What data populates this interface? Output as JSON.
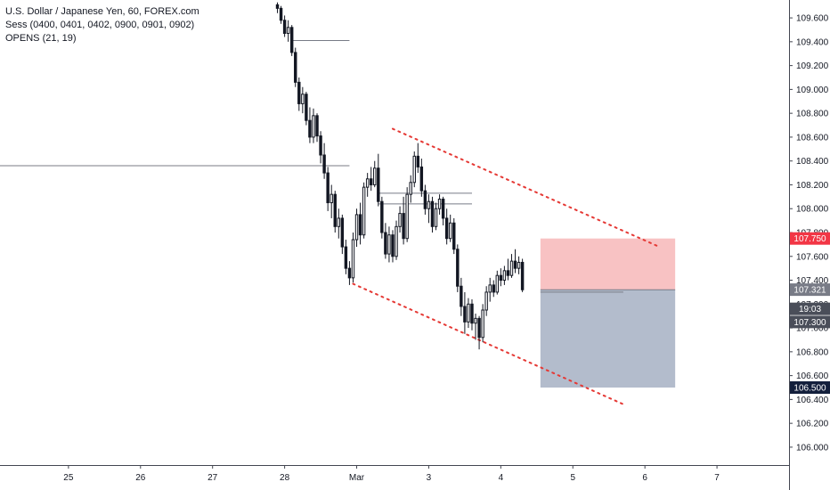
{
  "legend": {
    "title": "U.S. Dollar / Japanese Yen, 60, FOREX.com",
    "line2": "Sess (0400, 0401, 0402, 0900, 0901, 0902)",
    "line3": "OPENS (21, 19)"
  },
  "colors": {
    "up": "#ffffff",
    "down": "#131722",
    "outline": "#131722",
    "trend": "#e53935",
    "stop_zone": "#f7b7b9",
    "target_zone": "#a6b0c3",
    "price_line": "#787b86",
    "tag_red": "#f23645",
    "tag_gray": "#787b86",
    "tag_dark": "#4a4e59",
    "tag_navy": "#131f3c"
  },
  "chart_data": {
    "type": "candlestick",
    "title": "U.S. Dollar / Japanese Yen, 60, FOREX.com",
    "xlabel": "",
    "ylabel": "",
    "y_ticks": [
      "109.600",
      "109.400",
      "109.200",
      "109.000",
      "108.800",
      "108.600",
      "108.400",
      "108.200",
      "108.000",
      "107.800",
      "107.600",
      "107.400",
      "107.200",
      "107.000",
      "106.800",
      "106.600",
      "106.400",
      "106.200",
      "106.000"
    ],
    "x_ticks": [
      "25",
      "26",
      "27",
      "28",
      "Mar",
      "3",
      "4",
      "5",
      "6",
      "7"
    ],
    "x_tick_pos": [
      -2,
      -1,
      0,
      1,
      2,
      3,
      4,
      5,
      6,
      7
    ],
    "ylim": [
      105.85,
      109.75
    ],
    "xlim": [
      -2.95,
      8.0
    ],
    "price_tags": [
      {
        "label": "107.750",
        "value": 107.75,
        "style": "red"
      },
      {
        "label": "107.321",
        "value": 107.321,
        "style": "gray"
      },
      {
        "label": "19:03",
        "value": 107.16,
        "style": "dark"
      },
      {
        "label": "107.300",
        "value": 107.05,
        "style": "dark"
      },
      {
        "label": "106.500",
        "value": 106.5,
        "style": "navy"
      }
    ],
    "horizontal_lines": [
      {
        "x": [
          -3.0,
          1.9
        ],
        "y": 108.36
      },
      {
        "x": [
          1.1,
          1.9
        ],
        "y": 109.41
      },
      {
        "x": [
          2.3,
          3.6
        ],
        "y": 108.13
      },
      {
        "x": [
          2.3,
          3.6
        ],
        "y": 108.04
      },
      {
        "x": [
          4.55,
          5.7
        ],
        "y": 107.3
      }
    ],
    "trend_lines": [
      {
        "x": [
          2.5,
          6.2
        ],
        "y": [
          108.67,
          107.68
        ]
      },
      {
        "x": [
          1.95,
          5.7
        ],
        "y": [
          107.37,
          106.36
        ]
      }
    ],
    "position": {
      "x": [
        4.55,
        6.42
      ],
      "entry": 107.32,
      "stop": 107.75,
      "target": 106.5
    },
    "candles": [
      [
        0.9,
        109.71,
        109.73,
        109.64,
        109.68
      ],
      [
        0.95,
        109.68,
        109.7,
        109.55,
        109.58
      ],
      [
        1.0,
        109.58,
        109.62,
        109.44,
        109.47
      ],
      [
        1.05,
        109.47,
        109.58,
        109.4,
        109.52
      ],
      [
        1.1,
        109.52,
        109.54,
        109.28,
        109.31
      ],
      [
        1.15,
        109.31,
        109.35,
        109.02,
        109.06
      ],
      [
        1.2,
        109.06,
        109.1,
        108.82,
        108.88
      ],
      [
        1.25,
        108.88,
        109.02,
        108.8,
        108.96
      ],
      [
        1.3,
        108.96,
        108.98,
        108.7,
        108.74
      ],
      [
        1.35,
        108.74,
        108.85,
        108.55,
        108.6
      ],
      [
        1.4,
        108.6,
        108.84,
        108.55,
        108.78
      ],
      [
        1.45,
        108.78,
        108.8,
        108.56,
        108.61
      ],
      [
        1.5,
        108.61,
        108.65,
        108.38,
        108.45
      ],
      [
        1.55,
        108.45,
        108.55,
        108.25,
        108.3
      ],
      [
        1.6,
        108.3,
        108.35,
        107.98,
        108.05
      ],
      [
        1.65,
        108.05,
        108.2,
        107.92,
        108.12
      ],
      [
        1.7,
        108.12,
        108.15,
        107.8,
        107.85
      ],
      [
        1.75,
        107.85,
        108.0,
        107.75,
        107.92
      ],
      [
        1.8,
        107.92,
        107.95,
        107.62,
        107.68
      ],
      [
        1.85,
        107.68,
        107.74,
        107.45,
        107.5
      ],
      [
        1.9,
        107.5,
        107.56,
        107.36,
        107.42
      ],
      [
        1.95,
        107.42,
        107.8,
        107.38,
        107.74
      ],
      [
        2.0,
        107.74,
        108.0,
        107.68,
        107.95
      ],
      [
        2.05,
        107.95,
        108.05,
        107.7,
        107.78
      ],
      [
        2.1,
        107.78,
        108.22,
        107.75,
        108.18
      ],
      [
        2.15,
        108.18,
        108.3,
        108.1,
        108.25
      ],
      [
        2.2,
        108.25,
        108.35,
        108.15,
        108.2
      ],
      [
        2.25,
        108.2,
        108.4,
        108.18,
        108.34
      ],
      [
        2.3,
        108.34,
        108.46,
        108.02,
        108.06
      ],
      [
        2.35,
        108.06,
        108.1,
        107.75,
        107.8
      ],
      [
        2.4,
        107.8,
        107.88,
        107.58,
        107.62
      ],
      [
        2.45,
        107.62,
        107.85,
        107.55,
        107.78
      ],
      [
        2.5,
        107.78,
        107.82,
        107.55,
        107.6
      ],
      [
        2.55,
        107.6,
        107.9,
        107.57,
        107.85
      ],
      [
        2.6,
        107.85,
        108.02,
        107.8,
        107.96
      ],
      [
        2.65,
        107.96,
        108.1,
        107.7,
        107.75
      ],
      [
        2.7,
        107.75,
        108.18,
        107.72,
        108.12
      ],
      [
        2.75,
        108.12,
        108.28,
        108.05,
        108.22
      ],
      [
        2.8,
        108.22,
        108.48,
        108.18,
        108.44
      ],
      [
        2.85,
        108.44,
        108.55,
        108.3,
        108.35
      ],
      [
        2.9,
        108.35,
        108.42,
        108.1,
        108.15
      ],
      [
        2.95,
        108.15,
        108.2,
        107.95,
        108.0
      ],
      [
        3.0,
        108.0,
        108.12,
        107.88,
        108.06
      ],
      [
        3.05,
        108.06,
        108.1,
        107.8,
        107.85
      ],
      [
        3.1,
        107.85,
        108.05,
        107.82,
        108.0
      ],
      [
        3.15,
        108.0,
        108.12,
        107.95,
        108.08
      ],
      [
        3.2,
        108.08,
        108.1,
        107.86,
        107.92
      ],
      [
        3.25,
        107.92,
        108.0,
        107.7,
        107.75
      ],
      [
        3.3,
        107.75,
        107.95,
        107.72,
        107.88
      ],
      [
        3.35,
        107.88,
        107.92,
        107.62,
        107.66
      ],
      [
        3.4,
        107.66,
        107.7,
        107.3,
        107.35
      ],
      [
        3.45,
        107.35,
        107.42,
        107.1,
        107.18
      ],
      [
        3.5,
        107.18,
        107.3,
        106.95,
        107.05
      ],
      [
        3.55,
        107.05,
        107.25,
        107.0,
        107.2
      ],
      [
        3.6,
        107.2,
        107.24,
        106.98,
        107.04
      ],
      [
        3.65,
        107.04,
        107.12,
        106.9,
        107.08
      ],
      [
        3.7,
        107.08,
        107.1,
        106.82,
        106.92
      ],
      [
        3.75,
        106.92,
        107.2,
        106.88,
        107.15
      ],
      [
        3.8,
        107.15,
        107.35,
        107.1,
        107.3
      ],
      [
        3.85,
        107.3,
        107.42,
        107.22,
        107.36
      ],
      [
        3.9,
        107.36,
        107.4,
        107.26,
        107.3
      ],
      [
        3.95,
        107.3,
        107.48,
        107.28,
        107.44
      ],
      [
        4.0,
        107.44,
        107.5,
        107.35,
        107.4
      ],
      [
        4.05,
        107.4,
        107.52,
        107.36,
        107.48
      ],
      [
        4.1,
        107.48,
        107.58,
        107.4,
        107.44
      ],
      [
        4.15,
        107.44,
        107.62,
        107.42,
        107.56
      ],
      [
        4.2,
        107.56,
        107.66,
        107.46,
        107.5
      ],
      [
        4.25,
        107.5,
        107.6,
        107.45,
        107.55
      ],
      [
        4.3,
        107.55,
        107.58,
        107.3,
        107.32
      ]
    ]
  }
}
